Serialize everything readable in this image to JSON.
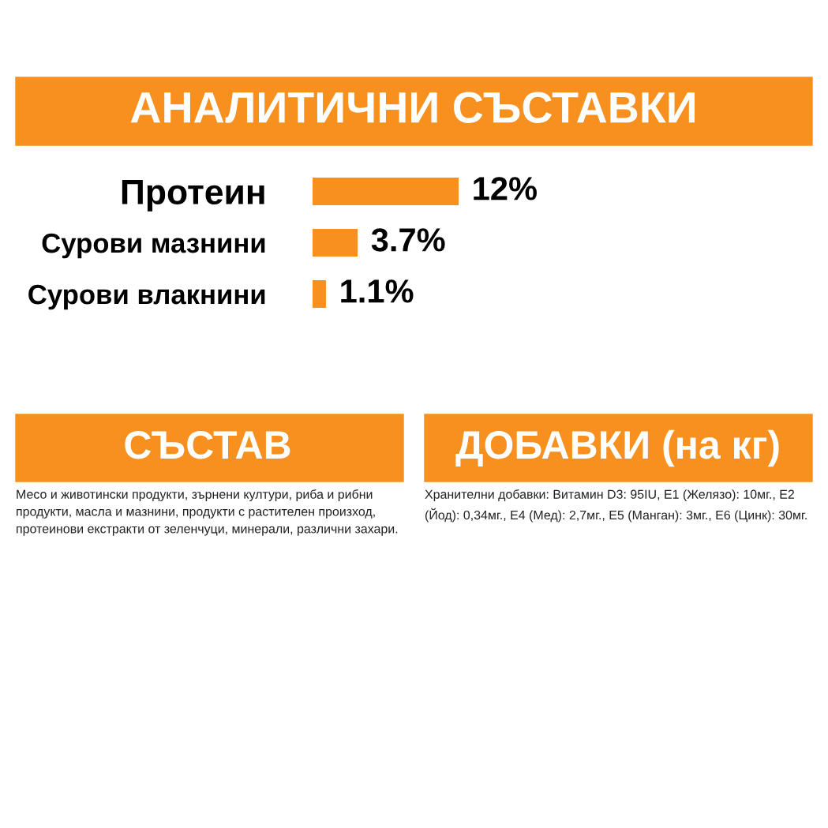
{
  "chart_data": {
    "type": "bar",
    "orientation": "horizontal",
    "title": "АНАЛИТИЧНИ СЪСТАВКИ",
    "categories": [
      "Протеин",
      "Сурови мазнини",
      "Сурови влакнини"
    ],
    "values": [
      12,
      3.7,
      1.1
    ],
    "color": "#f7901e",
    "value_labels": [
      "12%",
      "3.7%",
      "1.1%"
    ],
    "tick_labels": "y",
    "grid": false,
    "legend": false,
    "annotations": [
      "СЪСТАВ",
      "Месо и животински продукти, зърнени култури, риба и рибни продукти, масла и мазнини, продукти с растителен произход, протеинови екстракти от зеленчуци, минерали, различни захари.",
      "ДОБАВКИ (на кг)",
      "Хранителни добавки: Витамин D3: 95IU, E1 (Желязо): 10мг., E2 (Йод): 0,34мг., E4 (Мед): 2,7мг., E5 (Манган): 3мг., E6 (Цинк): 30мг."
    ]
  }
}
